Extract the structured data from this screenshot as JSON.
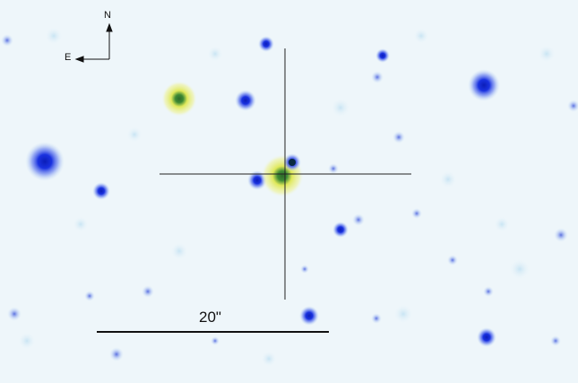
{
  "compass": {
    "north": "N",
    "east": "E"
  },
  "scale_bar": {
    "label": "20\""
  },
  "colors": {
    "background": "#eef6fa",
    "blue_star": "#1a2fd8",
    "yellow_glow": "#e6ec5a",
    "green_core": "#1f7a3a",
    "crosshair": "#222222"
  }
}
